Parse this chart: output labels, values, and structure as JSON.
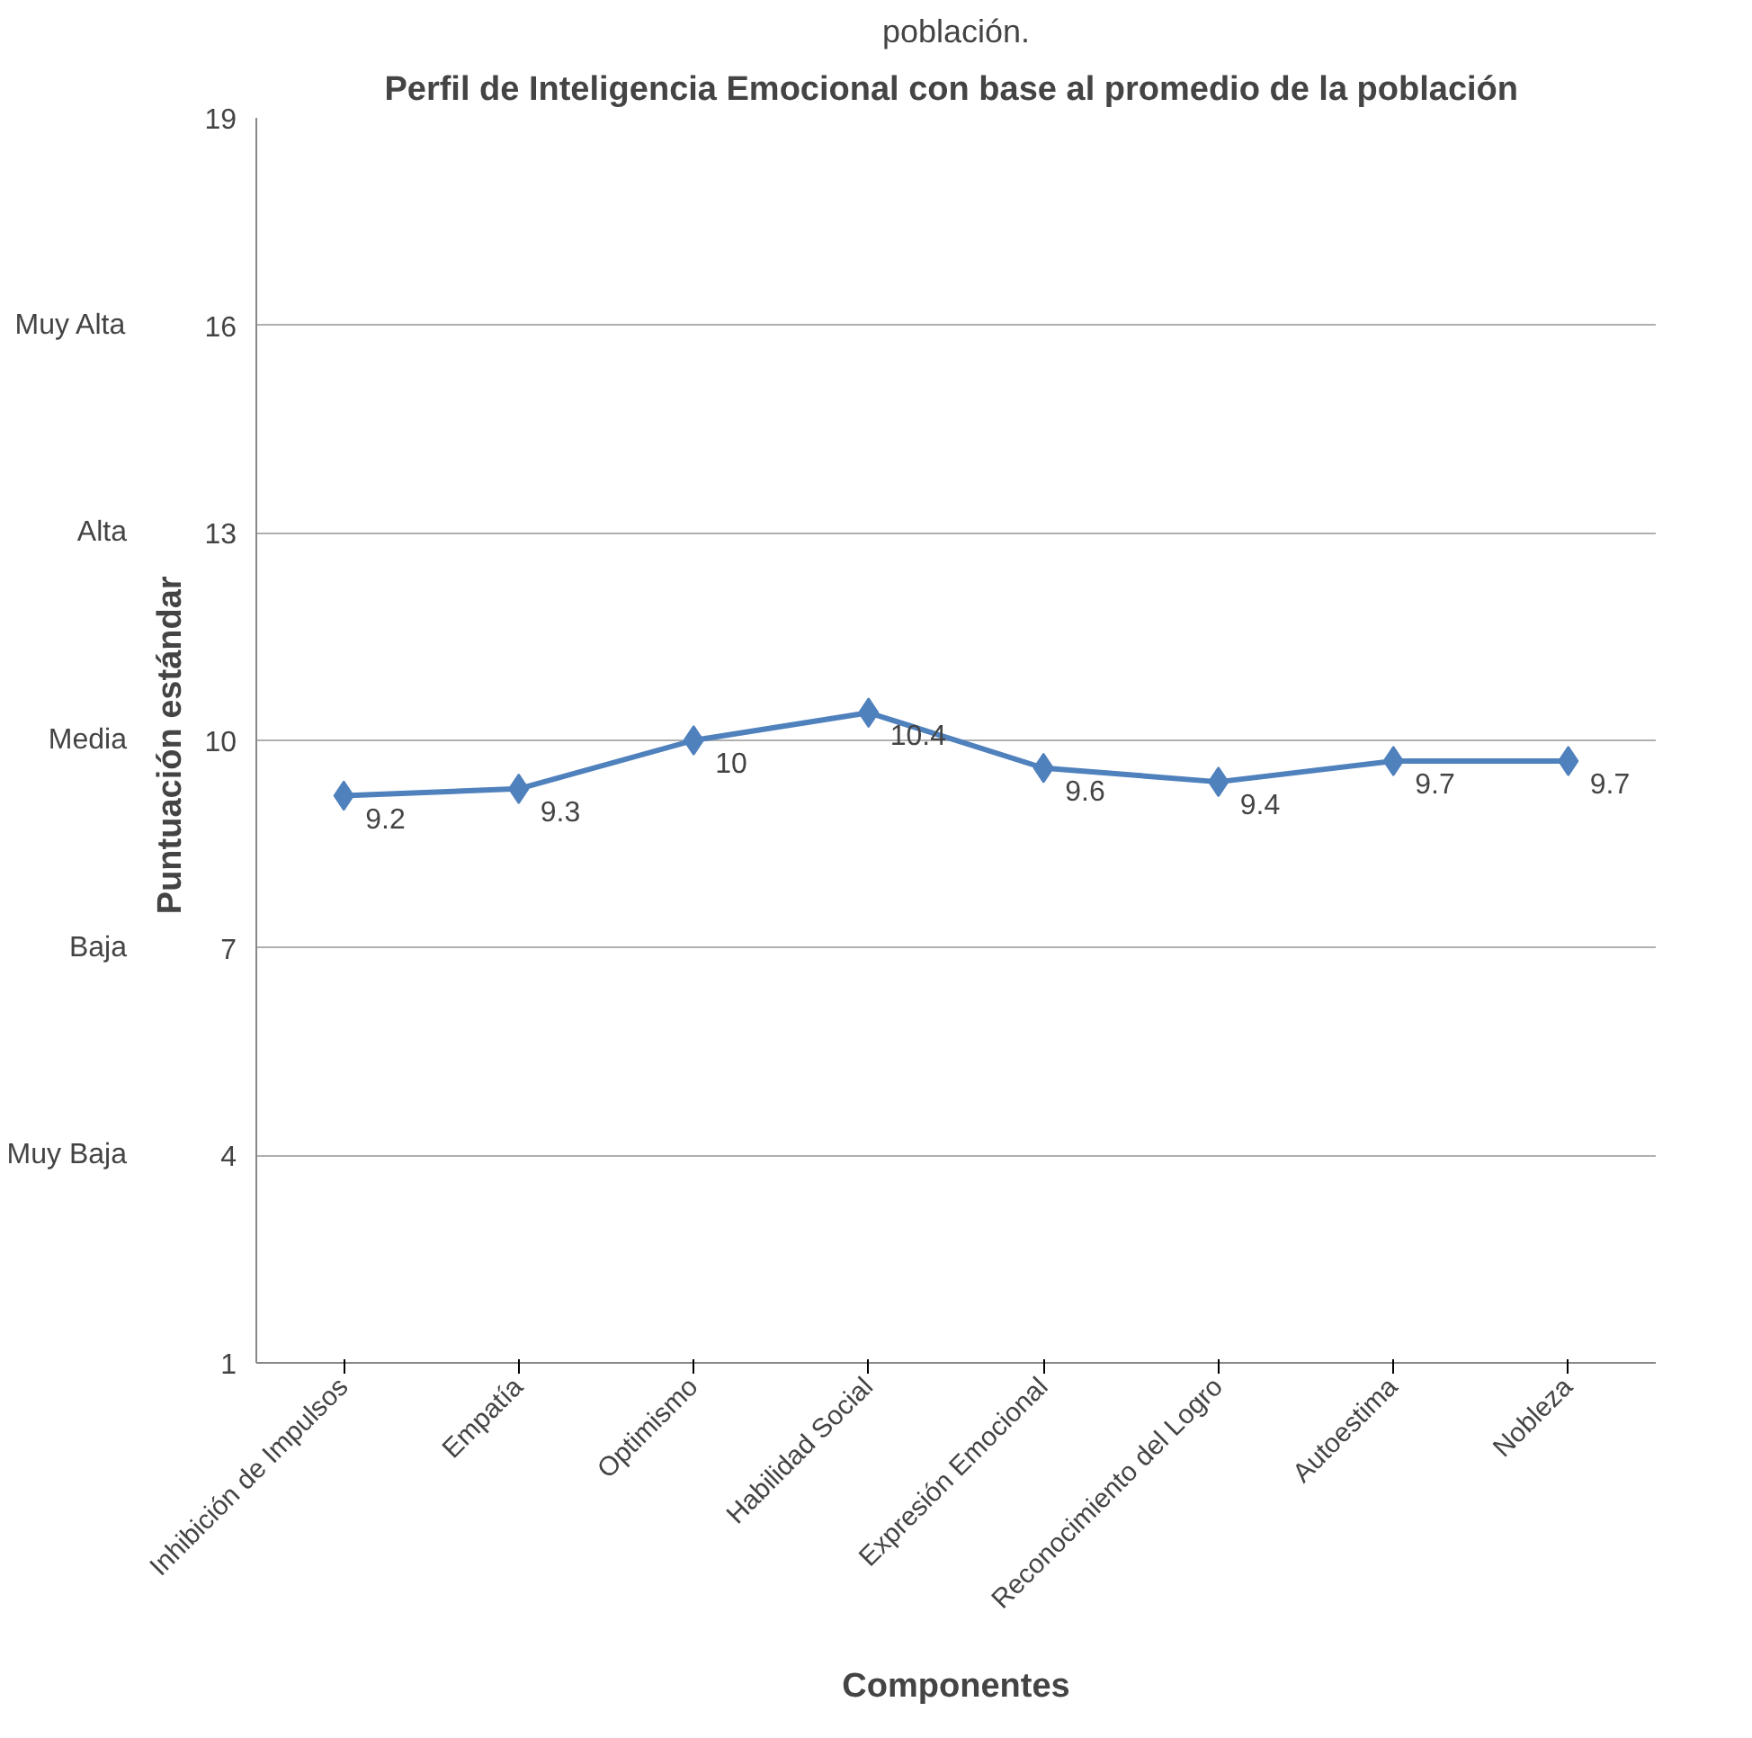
{
  "chart_data": {
    "type": "line",
    "title": "Perfil de Inteligencia Emocional  con base al promedio de la población",
    "xlabel": "Componentes",
    "ylabel": "Puntuación  estándar",
    "annotations": [
      "población.",
      "Muy Baja",
      "Baja",
      "Media",
      "Alta",
      "Muy Alta"
    ],
    "categories": [
      "Inhibición de Impulsos",
      "Empatía",
      "Optimismo",
      "Habilidad Social",
      "Expresión Emocional",
      "Reconocimiento del Logro",
      "Autoestima",
      "Nobleza"
    ],
    "series": [
      {
        "color": "#4f81bd",
        "values": [
          9.2,
          9.3,
          10,
          10.4,
          9.6,
          9.4,
          9.7,
          9.7
        ]
      }
    ],
    "ylim": [
      1,
      19
    ],
    "yticks": [
      1,
      4,
      7,
      10,
      13,
      16,
      19
    ],
    "grid": "y",
    "marker": "diamond",
    "line_style": "solid",
    "data_labels": true
  }
}
